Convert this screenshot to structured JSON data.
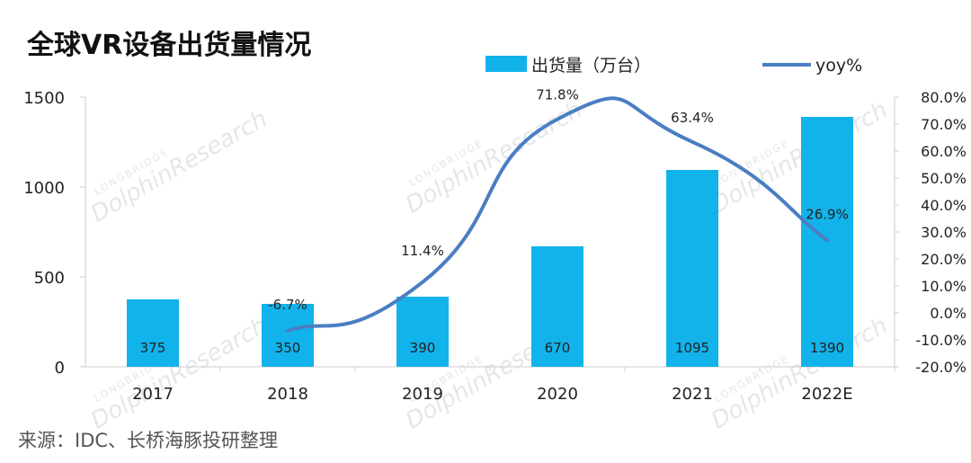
{
  "chart_data": {
    "type": "bar",
    "title": "全球VR设备出货量情况",
    "categories": [
      "2017",
      "2018",
      "2019",
      "2020",
      "2021",
      "2022E"
    ],
    "series": [
      {
        "name": "出货量（万台）",
        "type": "bar",
        "axis": "left",
        "color": "#12b3ea",
        "values": [
          375,
          350,
          390,
          670,
          1095,
          1390
        ],
        "labels": [
          "375",
          "350",
          "390",
          "670",
          "1095",
          "1390"
        ]
      },
      {
        "name": "yoy%",
        "type": "line",
        "axis": "right",
        "color": "#4a7ec3",
        "values": [
          null,
          -6.7,
          11.4,
          71.8,
          63.4,
          26.9
        ],
        "labels": [
          "",
          "-6.7%",
          "11.4%",
          "71.8%",
          "63.4%",
          "26.9%"
        ]
      }
    ],
    "y_left": {
      "min": 0,
      "max": 1500,
      "ticks": [
        0,
        500,
        1000,
        1500
      ],
      "tick_labels": [
        "0",
        "500",
        "1000",
        "1500"
      ]
    },
    "y_right": {
      "min": -20,
      "max": 80,
      "ticks": [
        -20,
        -10,
        0,
        10,
        20,
        30,
        40,
        50,
        60,
        70,
        80
      ],
      "tick_labels": [
        "-20.0%",
        "-10.0%",
        "0.0%",
        "10.0%",
        "20.0%",
        "30.0%",
        "40.0%",
        "50.0%",
        "60.0%",
        "70.0%",
        "80.0%"
      ]
    },
    "legend": {
      "position": "top-right",
      "bar_label": "出货量（万台）",
      "line_label": "yoy%"
    },
    "grid": false,
    "source": "来源：IDC、长桥海豚投研整理"
  },
  "watermark": {
    "sub": "LONGBRIDGE",
    "main": "DolphinResearch"
  },
  "colors": {
    "bar": "#12b3ea",
    "line": "#4a7ec3",
    "axis": "#cccccc"
  }
}
